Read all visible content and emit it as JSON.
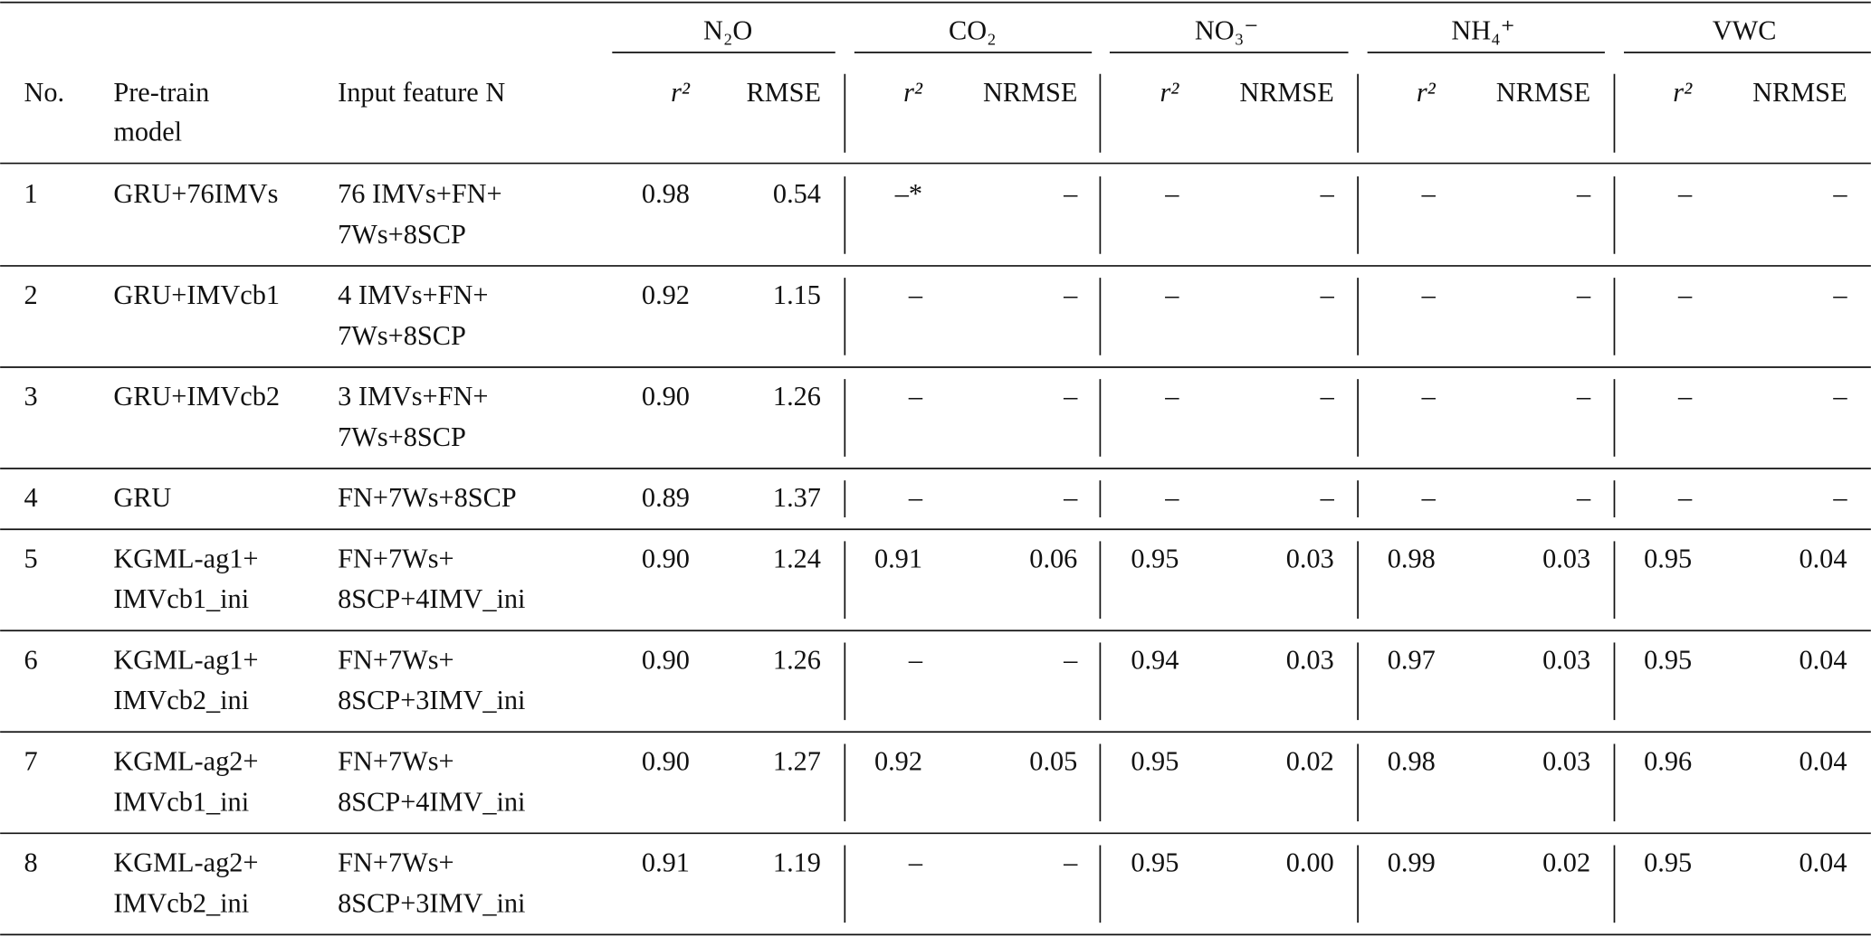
{
  "table": {
    "groups": [
      "N₂O",
      "CO₂",
      "NO₃⁻",
      "NH₄⁺",
      "VWC"
    ],
    "columns": [
      [
        "No."
      ],
      [
        "Pre-train",
        "model"
      ],
      [
        "Input feature N"
      ]
    ],
    "subcolumns": [
      "r²",
      "RMSE",
      "r²",
      "NRMSE",
      "r²",
      "NRMSE",
      "r²",
      "NRMSE",
      "r²",
      "NRMSE"
    ],
    "rows": [
      [
        [
          "1"
        ],
        [
          "GRU+76IMVs"
        ],
        [
          "76 IMVs+FN+",
          "7Ws+8SCP"
        ],
        "0.98",
        "0.54",
        "–*",
        "–",
        "–",
        "–",
        "–",
        "–",
        "–",
        "–"
      ],
      [
        [
          "2"
        ],
        [
          "GRU+IMVcb1"
        ],
        [
          "4 IMVs+FN+",
          "7Ws+8SCP"
        ],
        "0.92",
        "1.15",
        "–",
        "–",
        "–",
        "–",
        "–",
        "–",
        "–",
        "–"
      ],
      [
        [
          "3"
        ],
        [
          "GRU+IMVcb2"
        ],
        [
          "3 IMVs+FN+",
          "7Ws+8SCP"
        ],
        "0.90",
        "1.26",
        "–",
        "–",
        "–",
        "–",
        "–",
        "–",
        "–",
        "–"
      ],
      [
        [
          "4"
        ],
        [
          "GRU"
        ],
        [
          "FN+7Ws+8SCP"
        ],
        "0.89",
        "1.37",
        "–",
        "–",
        "–",
        "–",
        "–",
        "–",
        "–",
        "–"
      ],
      [
        [
          "5"
        ],
        [
          "KGML-ag1+",
          "IMVcb1_ini"
        ],
        [
          "FN+7Ws+",
          "8SCP+4IMV_ini"
        ],
        "0.90",
        "1.24",
        "0.91",
        "0.06",
        "0.95",
        "0.03",
        "0.98",
        "0.03",
        "0.95",
        "0.04"
      ],
      [
        [
          "6"
        ],
        [
          "KGML-ag1+",
          "IMVcb2_ini"
        ],
        [
          "FN+7Ws+",
          "8SCP+3IMV_ini"
        ],
        "0.90",
        "1.26",
        "–",
        "–",
        "0.94",
        "0.03",
        "0.97",
        "0.03",
        "0.95",
        "0.04"
      ],
      [
        [
          "7"
        ],
        [
          "KGML-ag2+",
          "IMVcb1_ini"
        ],
        [
          "FN+7Ws+",
          "8SCP+4IMV_ini"
        ],
        "0.90",
        "1.27",
        "0.92",
        "0.05",
        "0.95",
        "0.02",
        "0.98",
        "0.03",
        "0.96",
        "0.04"
      ],
      [
        [
          "8"
        ],
        [
          "KGML-ag2+",
          "IMVcb2_ini"
        ],
        [
          "FN+7Ws+",
          "8SCP+3IMV_ini"
        ],
        "0.91",
        "1.19",
        "–",
        "–",
        "0.95",
        "0.00",
        "0.99",
        "0.02",
        "0.95",
        "0.04"
      ]
    ]
  }
}
